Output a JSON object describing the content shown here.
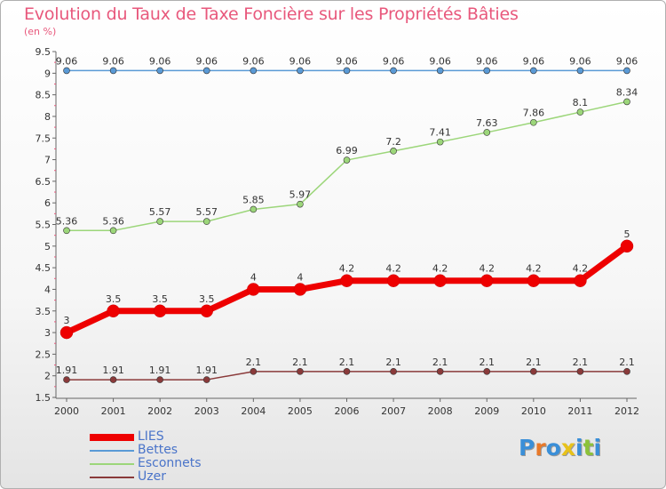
{
  "title": "Evolution du Taux de Taxe Foncière sur les Propriétés Bâties",
  "unit": "(en %)",
  "logo": {
    "text": "Proxiti",
    "letters": [
      "P",
      "r",
      "o",
      "x",
      "i",
      "t",
      "i"
    ],
    "colors": [
      "#3a8fd8",
      "#e8792a",
      "#3a8fd8",
      "#e8c21a",
      "#3a8fd8",
      "#8cc23a",
      "#3a8fd8"
    ]
  },
  "chart_data": {
    "type": "line",
    "title": "Evolution du Taux de Taxe Foncière sur les Propriétés Bâties",
    "ylabel": "(en %)",
    "xlabel": "",
    "x": [
      "2000",
      "2001",
      "2002",
      "2003",
      "2004",
      "2005",
      "2006",
      "2007",
      "2008",
      "2009",
      "2010",
      "2011",
      "2012"
    ],
    "ylim": [
      1.5,
      9.5
    ],
    "yticks": [
      "1.5",
      "2",
      "2.5",
      "3",
      "3.5",
      "4",
      "4.5",
      "5",
      "5.5",
      "6",
      "6.5",
      "7",
      "7.5",
      "8",
      "8.5",
      "9",
      "9.5"
    ],
    "grid": false,
    "legend_position": "bottom-left",
    "series": [
      {
        "name": "LIES",
        "color": "#ee0000",
        "width": 7,
        "marker": 7,
        "values": [
          3,
          3.5,
          3.5,
          3.5,
          4,
          4,
          4.2,
          4.2,
          4.2,
          4.2,
          4.2,
          4.2,
          5
        ],
        "labels": [
          "3",
          "3.5",
          "3.5",
          "3.5",
          "4",
          "4",
          "4.2",
          "4.2",
          "4.2",
          "4.2",
          "4.2",
          "4.2",
          "5"
        ]
      },
      {
        "name": "Bettes",
        "color": "#5a9ad6",
        "width": 1.5,
        "marker": 3.5,
        "values": [
          9.06,
          9.06,
          9.06,
          9.06,
          9.06,
          9.06,
          9.06,
          9.06,
          9.06,
          9.06,
          9.06,
          9.06,
          9.06
        ],
        "labels": [
          "9.06",
          "9.06",
          "9.06",
          "9.06",
          "9.06",
          "9.06",
          "9.06",
          "9.06",
          "9.06",
          "9.06",
          "9.06",
          "9.06",
          "9.06"
        ]
      },
      {
        "name": "Esconnets",
        "color": "#9cd67a",
        "width": 1.5,
        "marker": 3.5,
        "values": [
          5.36,
          5.36,
          5.57,
          5.57,
          5.85,
          5.97,
          6.99,
          7.2,
          7.41,
          7.63,
          7.86,
          8.1,
          8.34
        ],
        "labels": [
          "5.36",
          "5.36",
          "5.57",
          "5.57",
          "5.85",
          "5.97",
          "6.99",
          "7.2",
          "7.41",
          "7.63",
          "7.86",
          "8.1",
          "8.34"
        ]
      },
      {
        "name": "Uzer",
        "color": "#8a3a3a",
        "width": 1.5,
        "marker": 3.5,
        "values": [
          1.91,
          1.91,
          1.91,
          1.91,
          2.1,
          2.1,
          2.1,
          2.1,
          2.1,
          2.1,
          2.1,
          2.1,
          2.1
        ],
        "labels": [
          "1.91",
          "1.91",
          "1.91",
          "1.91",
          "2.1",
          "2.1",
          "2.1",
          "2.1",
          "2.1",
          "2.1",
          "2.1",
          "2.1",
          "2.1"
        ]
      }
    ]
  }
}
